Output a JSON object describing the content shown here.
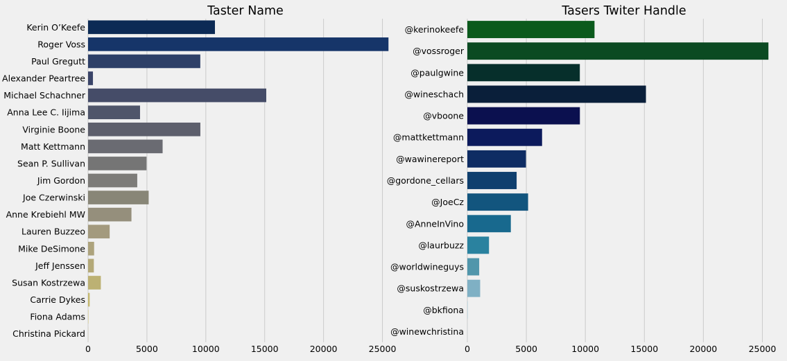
{
  "chart_data": [
    {
      "type": "bar",
      "orientation": "horizontal",
      "title": "Taster Name",
      "xlabel": "",
      "ylabel": "",
      "xlim": [
        0,
        26500
      ],
      "xticks": [
        0,
        5000,
        10000,
        15000,
        20000,
        25000
      ],
      "grid": true,
      "categories": [
        "Kerin O’Keefe",
        "Roger Voss",
        "Paul Gregutt",
        "Alexander Peartree",
        "Michael Schachner",
        "Anna Lee C. Iijima",
        "Virginie Boone",
        "Matt Kettmann",
        "Sean P. Sullivan",
        "Jim Gordon",
        "Joe Czerwinski",
        "Anne Krebiehl MW",
        "Lauren Buzzeo",
        "Mike DeSimone",
        "Jeff Jenssen",
        "Susan Kostrzewa",
        "Carrie Dykes",
        "Fiona Adams",
        "Christina Pickard"
      ],
      "values": [
        10776,
        25514,
        9532,
        415,
        15134,
        4415,
        9537,
        6332,
        4966,
        4177,
        5147,
        3685,
        1835,
        514,
        491,
        1085,
        139,
        27,
        6
      ],
      "colors": [
        "#0c2a55",
        "#163569",
        "#2e4068",
        "#3a4468",
        "#454c68",
        "#4f556a",
        "#5d5f6c",
        "#6a6b72",
        "#757575",
        "#7d7c79",
        "#888677",
        "#958f7c",
        "#a39a7e",
        "#ada37c",
        "#b4a978",
        "#bcb173",
        "#c4b86e",
        "#cdbd6a",
        "#d6c464"
      ]
    },
    {
      "type": "bar",
      "orientation": "horizontal",
      "title": "Tasers Twiter Handle",
      "xlabel": "",
      "ylabel": "",
      "xlim": [
        0,
        26500
      ],
      "xticks": [
        0,
        5000,
        10000,
        15000,
        20000,
        25000
      ],
      "grid": true,
      "categories": [
        "@kerinokeefe",
        "@vossroger",
        "@paulgwine ",
        "@wineschach",
        "@vboone",
        "@mattkettmann",
        "@wawinereport",
        "@gordone_cellars",
        "@JoeCz",
        "@AnneInVino",
        "@laurbuzz",
        "@worldwineguys",
        "@suskostrzewa",
        "@bkfiona",
        "@winewchristina"
      ],
      "values": [
        10776,
        25514,
        9532,
        15134,
        9537,
        6332,
        4966,
        4177,
        5147,
        3685,
        1835,
        1005,
        1085,
        27,
        6
      ],
      "colors": [
        "#0b5a1c",
        "#0b4a22",
        "#062f2b",
        "#0a1f3a",
        "#0b104f",
        "#0c1a5c",
        "#0e2c63",
        "#0f3f6e",
        "#12557e",
        "#18698e",
        "#2a829f",
        "#5196ab",
        "#7fb0c4",
        "#9fc8d8",
        "#b9dbe6"
      ]
    }
  ]
}
